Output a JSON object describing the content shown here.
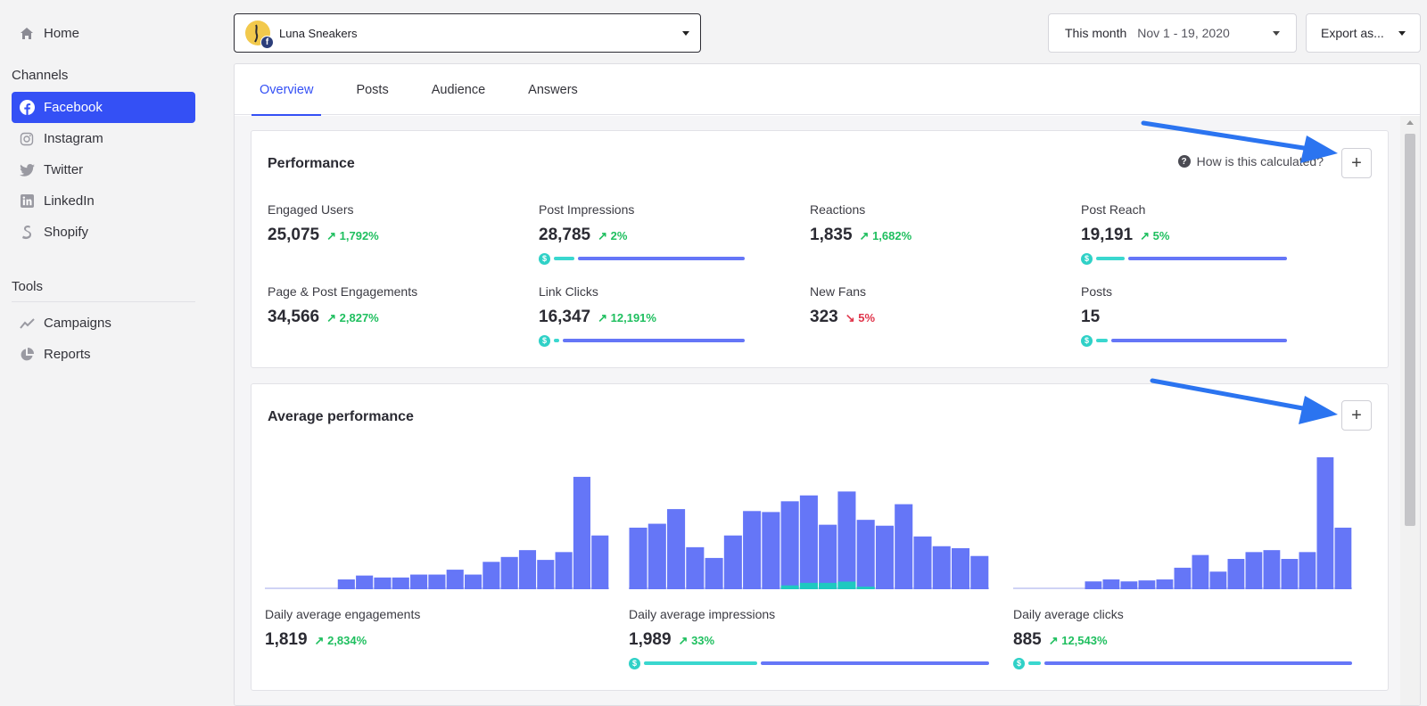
{
  "sidebar": {
    "home": "Home",
    "channels_heading": "Channels",
    "channels": [
      {
        "label": "Facebook",
        "icon": "facebook-icon",
        "active": true
      },
      {
        "label": "Instagram",
        "icon": "instagram-icon"
      },
      {
        "label": "Twitter",
        "icon": "twitter-icon"
      },
      {
        "label": "LinkedIn",
        "icon": "linkedin-icon"
      },
      {
        "label": "Shopify",
        "icon": "shopify-icon"
      }
    ],
    "tools_heading": "Tools",
    "tools": [
      {
        "label": "Campaigns",
        "icon": "trend-icon"
      },
      {
        "label": "Reports",
        "icon": "pie-chart-icon"
      }
    ]
  },
  "account": {
    "name": "Luna Sneakers"
  },
  "date_range": {
    "label": "This month",
    "value": "Nov 1 - 19, 2020"
  },
  "export": {
    "label": "Export as..."
  },
  "tabs": [
    "Overview",
    "Posts",
    "Audience",
    "Answers"
  ],
  "performance": {
    "title": "Performance",
    "help": "How is this calculated?",
    "metrics": [
      {
        "label": "Engaged Users",
        "value": "25,075",
        "change": "1,792%",
        "dir": "up"
      },
      {
        "label": "Post Impressions",
        "value": "28,785",
        "change": "2%",
        "dir": "up",
        "paid_share": 0.11
      },
      {
        "label": "Reactions",
        "value": "1,835",
        "change": "1,682%",
        "dir": "up"
      },
      {
        "label": "Post Reach",
        "value": "19,191",
        "change": "5%",
        "dir": "up",
        "paid_share": 0.15
      },
      {
        "label": "Page & Post Engagements",
        "value": "34,566",
        "change": "2,827%",
        "dir": "up"
      },
      {
        "label": "Link Clicks",
        "value": "16,347",
        "change": "12,191%",
        "dir": "up",
        "paid_share": 0.03
      },
      {
        "label": "New Fans",
        "value": "323",
        "change": "5%",
        "dir": "down"
      },
      {
        "label": "Posts",
        "value": "15",
        "change": "",
        "dir": "up",
        "paid_share": 0.06
      }
    ]
  },
  "average": {
    "title": "Average performance",
    "items": [
      {
        "label": "Daily average engagements",
        "value": "1,819",
        "change": "2,834%",
        "dir": "up"
      },
      {
        "label": "Daily average impressions",
        "value": "1,989",
        "change": "33%",
        "dir": "up",
        "paid_share": 0.33
      },
      {
        "label": "Daily average clicks",
        "value": "885",
        "change": "12,543%",
        "dir": "up",
        "paid_share": 0.04
      }
    ]
  },
  "chart_data": [
    {
      "type": "bar",
      "title": "",
      "values": [
        0,
        0,
        0,
        0,
        1,
        1.4,
        1.2,
        1.2,
        1.5,
        1.5,
        2,
        1.5,
        2.8,
        3.3,
        4,
        3,
        3.8,
        11.5,
        5.5
      ],
      "paid": []
    },
    {
      "type": "bar",
      "title": "",
      "values": [
        6.3,
        6.7,
        8.2,
        4.3,
        3.2,
        5.5,
        8,
        7.9,
        9,
        9.6,
        6.6,
        10,
        7.1,
        6.5,
        8.7,
        5.4,
        4.4,
        4.2,
        3.4
      ],
      "paid": [
        0,
        0,
        0,
        0,
        0,
        0,
        0,
        0,
        0.3,
        0.5,
        0.5,
        0.6,
        0.2,
        0,
        0,
        0,
        0,
        0,
        0
      ]
    },
    {
      "type": "bar",
      "title": "",
      "values": [
        0,
        0,
        0,
        0,
        0.8,
        1,
        0.8,
        0.9,
        1,
        2.2,
        3.5,
        1.8,
        3.1,
        3.8,
        4,
        3.1,
        3.8,
        13.5,
        6.3
      ],
      "paid": []
    }
  ],
  "colors": {
    "accent": "#3450f5",
    "bar": "#6576f7",
    "paid": "#3ad7cf",
    "up": "#1fbf5f",
    "down": "#e0354b"
  }
}
